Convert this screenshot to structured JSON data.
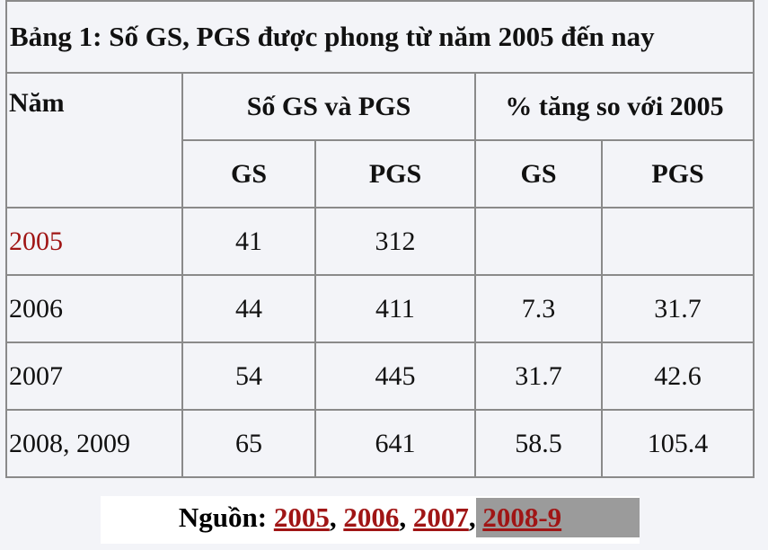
{
  "table": {
    "title": "Bảng 1: Số GS, PGS được phong từ năm 2005 đến nay",
    "header": {
      "year": "Năm",
      "group1": "Số GS và PGS",
      "group2": "% tăng so với 2005",
      "sub": [
        "GS",
        "PGS",
        "GS",
        "PGS"
      ]
    },
    "rows": [
      [
        "2005",
        41,
        312,
        null,
        null
      ],
      [
        "2006",
        44,
        411,
        7.3,
        31.7
      ],
      [
        "2007",
        54,
        445,
        31.7,
        42.6
      ],
      [
        "2008, 2009",
        65,
        641,
        58.5,
        105.4
      ]
    ]
  },
  "source": {
    "label": "Nguồn:",
    "separator": ",",
    "links": [
      "2005",
      "2006",
      "2007",
      "2008-9"
    ]
  }
}
